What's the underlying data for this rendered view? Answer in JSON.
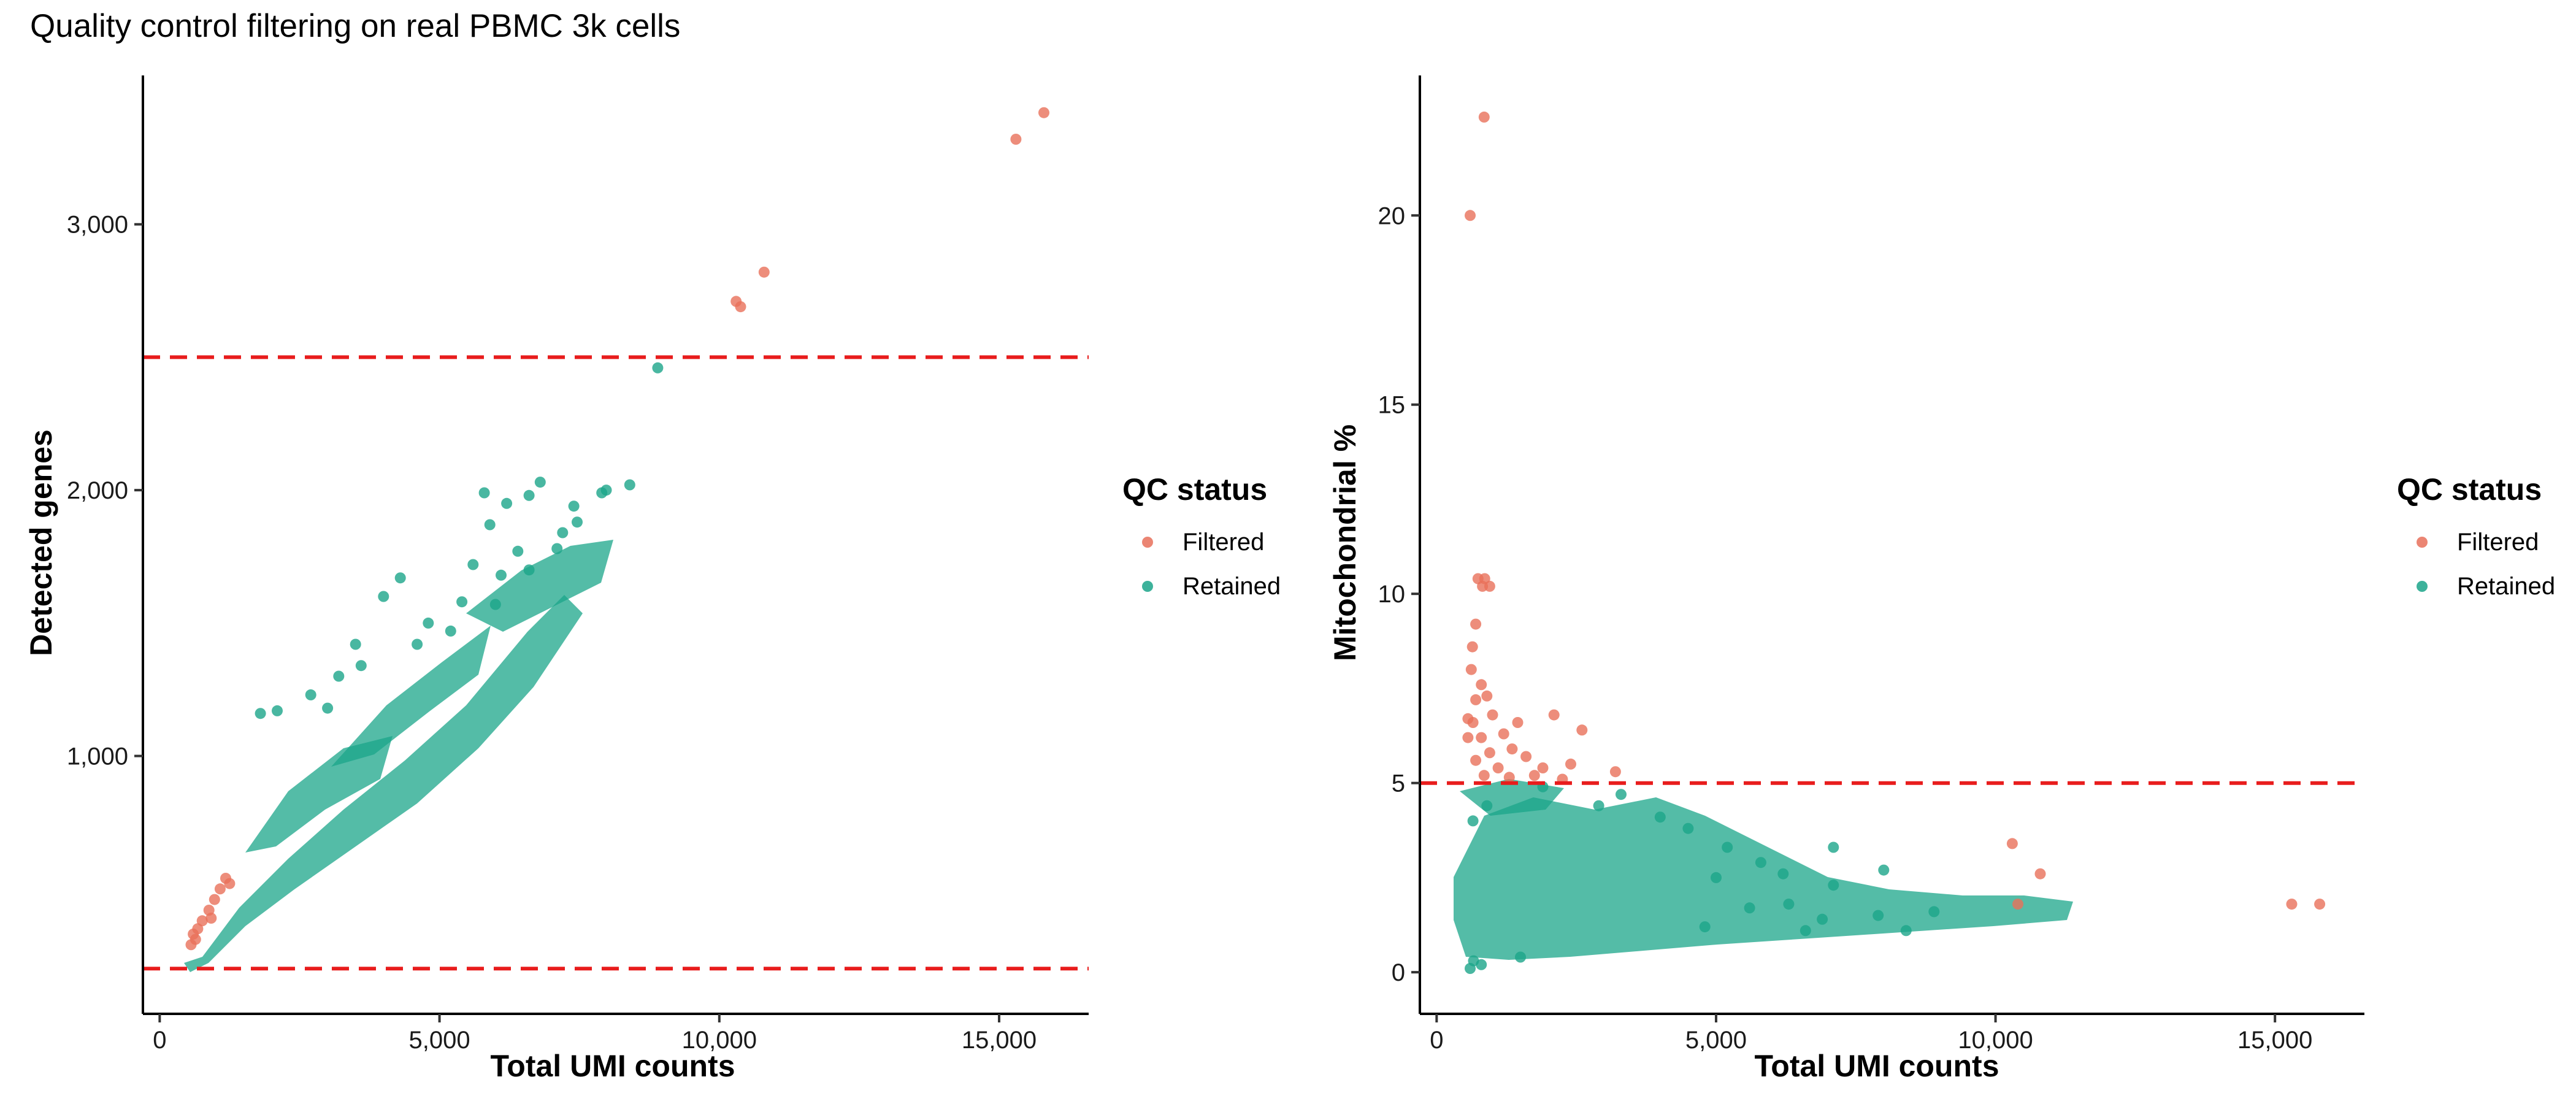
{
  "title": "Quality control filtering on real PBMC 3k cells",
  "colors": {
    "filtered": "#E8705A",
    "retained": "#1BA58A",
    "threshold": "#E81C1C"
  },
  "chart_data": [
    {
      "type": "scatter",
      "title": "",
      "xlabel": "Total UMI counts",
      "ylabel": "Detected genes",
      "xlim": [
        -300,
        16600
      ],
      "ylim": [
        30,
        3560
      ],
      "x_ticks": [
        0,
        5000,
        10000,
        15000
      ],
      "x_tick_labels": [
        "0",
        "5,000",
        "10,000",
        "15,000"
      ],
      "y_ticks": [
        1000,
        2000,
        3000
      ],
      "y_tick_labels": [
        "1,000",
        "2,000",
        "3,000"
      ],
      "thresholds": [
        {
          "axis": "y",
          "value": 2500
        },
        {
          "axis": "y",
          "value": 200
        }
      ],
      "legend": {
        "title": "QC status",
        "placement": "right",
        "entries": [
          "Filtered",
          "Retained"
        ]
      },
      "series": [
        {
          "name": "Filtered",
          "color": "#E8705A",
          "points": [
            [
              15800,
              3420
            ],
            [
              15300,
              3320
            ],
            [
              10800,
              2820
            ],
            [
              10300,
              2710
            ],
            [
              10380,
              2690
            ],
            [
              600,
              330
            ],
            [
              680,
              350
            ],
            [
              760,
              380
            ],
            [
              880,
              420
            ],
            [
              980,
              460
            ],
            [
              1080,
              500
            ],
            [
              1180,
              540
            ],
            [
              560,
              290
            ],
            [
              640,
              310
            ],
            [
              920,
              390
            ],
            [
              1250,
              520
            ]
          ]
        },
        {
          "name": "Retained",
          "color": "#1BA58A",
          "points": [
            [
              8900,
              2460
            ],
            [
              8400,
              2020
            ],
            [
              7980,
              2000
            ],
            [
              7900,
              1990
            ],
            [
              7400,
              1940
            ],
            [
              7460,
              1880
            ],
            [
              6800,
              2030
            ],
            [
              6600,
              1980
            ],
            [
              6200,
              1950
            ],
            [
              5800,
              1990
            ],
            [
              5900,
              1870
            ],
            [
              6400,
              1770
            ],
            [
              6600,
              1700
            ],
            [
              7100,
              1780
            ],
            [
              7200,
              1840
            ],
            [
              6100,
              1680
            ],
            [
              5600,
              1720
            ],
            [
              5400,
              1580
            ],
            [
              6000,
              1570
            ],
            [
              5200,
              1470
            ],
            [
              4800,
              1500
            ],
            [
              4600,
              1420
            ],
            [
              4300,
              1670
            ],
            [
              4000,
              1600
            ],
            [
              3500,
              1420
            ],
            [
              3600,
              1340
            ],
            [
              3200,
              1300
            ],
            [
              2700,
              1230
            ],
            [
              3000,
              1180
            ],
            [
              2100,
              1170
            ],
            [
              1800,
              1160
            ]
          ]
        }
      ]
    },
    {
      "type": "scatter",
      "title": "",
      "xlabel": "Total UMI counts",
      "ylabel": "Mitochondrial %",
      "xlim": [
        -300,
        16600
      ],
      "ylim": [
        -1.1,
        23.7
      ],
      "x_ticks": [
        0,
        5000,
        10000,
        15000
      ],
      "x_tick_labels": [
        "0",
        "5,000",
        "10,000",
        "15,000"
      ],
      "y_ticks": [
        0,
        5,
        10,
        15,
        20
      ],
      "y_tick_labels": [
        "0",
        "5",
        "10",
        "15",
        "20"
      ],
      "thresholds": [
        {
          "axis": "y",
          "value": 5
        }
      ],
      "legend": {
        "title": "QC status",
        "placement": "right",
        "entries": [
          "Filtered",
          "Retained"
        ]
      },
      "series": [
        {
          "name": "Filtered",
          "color": "#E8705A",
          "points": [
            [
              850,
              22.6
            ],
            [
              600,
              20.0
            ],
            [
              740,
              10.4
            ],
            [
              860,
              10.4
            ],
            [
              820,
              10.2
            ],
            [
              950,
              10.2
            ],
            [
              700,
              9.2
            ],
            [
              640,
              8.6
            ],
            [
              620,
              8.0
            ],
            [
              800,
              7.6
            ],
            [
              900,
              7.3
            ],
            [
              700,
              7.2
            ],
            [
              560,
              6.7
            ],
            [
              650,
              6.6
            ],
            [
              1000,
              6.8
            ],
            [
              1450,
              6.6
            ],
            [
              2100,
              6.8
            ],
            [
              2600,
              6.4
            ],
            [
              1200,
              6.3
            ],
            [
              800,
              6.2
            ],
            [
              560,
              6.2
            ],
            [
              1350,
              5.9
            ],
            [
              950,
              5.8
            ],
            [
              700,
              5.6
            ],
            [
              1600,
              5.7
            ],
            [
              2400,
              5.5
            ],
            [
              1900,
              5.4
            ],
            [
              1100,
              5.4
            ],
            [
              3200,
              5.3
            ],
            [
              1750,
              5.2
            ],
            [
              850,
              5.2
            ],
            [
              1300,
              5.15
            ],
            [
              2250,
              5.1
            ],
            [
              10300,
              3.4
            ],
            [
              10800,
              2.6
            ],
            [
              10400,
              1.8
            ],
            [
              15300,
              1.8
            ],
            [
              15800,
              1.8
            ]
          ]
        },
        {
          "name": "Retained",
          "color": "#1BA58A",
          "points": [
            [
              8900,
              1.6
            ],
            [
              8400,
              1.1
            ],
            [
              8000,
              2.7
            ],
            [
              7900,
              1.5
            ],
            [
              7100,
              3.3
            ],
            [
              7100,
              2.3
            ],
            [
              6900,
              1.4
            ],
            [
              6600,
              1.1
            ],
            [
              6200,
              2.6
            ],
            [
              6300,
              1.8
            ],
            [
              5800,
              2.9
            ],
            [
              5600,
              1.7
            ],
            [
              5200,
              3.3
            ],
            [
              5000,
              2.5
            ],
            [
              4800,
              1.2
            ],
            [
              4500,
              3.8
            ],
            [
              4000,
              4.1
            ],
            [
              3300,
              4.7
            ],
            [
              2900,
              4.4
            ],
            [
              1900,
              4.9
            ],
            [
              900,
              4.4
            ],
            [
              650,
              4.0
            ],
            [
              600,
              0.1
            ],
            [
              660,
              0.3
            ],
            [
              800,
              0.2
            ],
            [
              1500,
              0.4
            ]
          ]
        }
      ]
    }
  ]
}
